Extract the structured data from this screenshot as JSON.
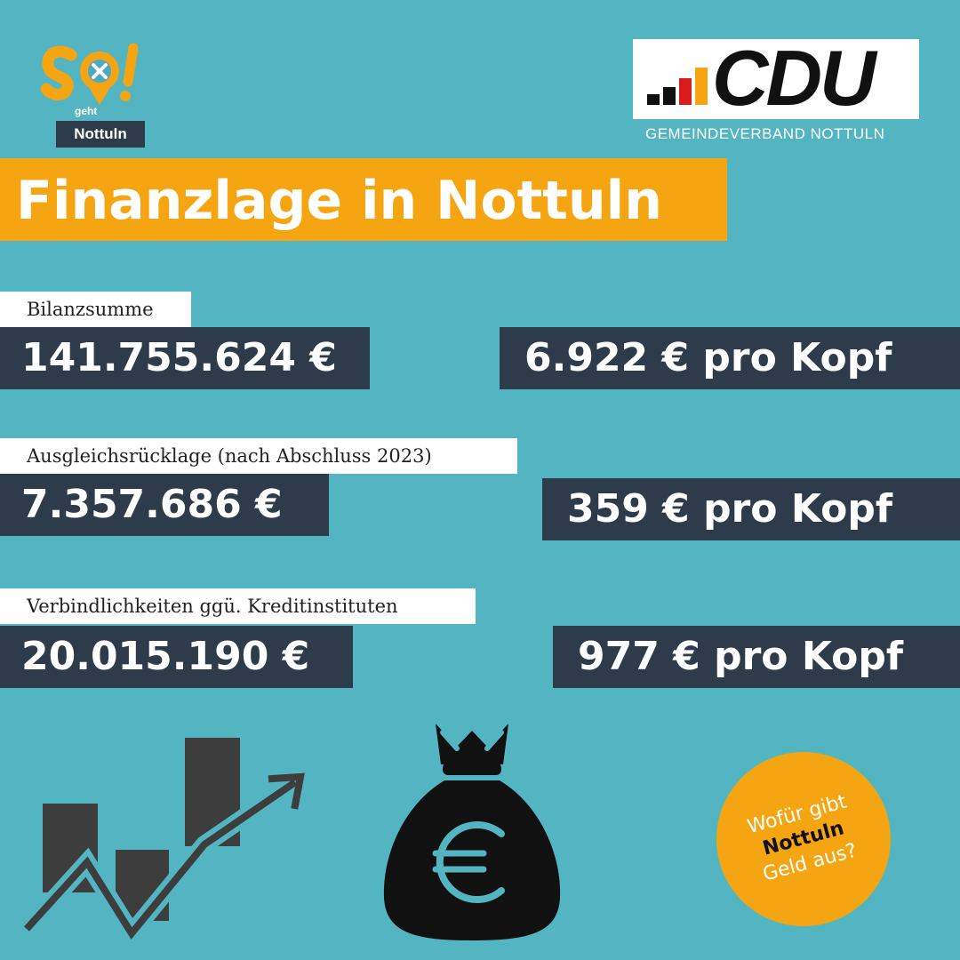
{
  "logo": {
    "geht": "geht",
    "nottuln": "Nottuln",
    "so": "SO!"
  },
  "cdu": {
    "name": "CDU",
    "subtitle": "GEMEINDEVERBAND NOTTULN",
    "bar_colors": [
      "#111111",
      "#d91b1b",
      "#f5a512"
    ]
  },
  "title": "Finanzlage in Nottuln",
  "rows": [
    {
      "label": "Bilanzsumme",
      "value": "141.755.624 €",
      "per_capita": "6.922 €  pro Kopf"
    },
    {
      "label": "Ausgleichsrücklage (nach Abschluss 2023)",
      "value": "7.357.686 €",
      "per_capita": "359 €  pro Kopf"
    },
    {
      "label": "Verbindlichkeiten ggü. Kreditinstituten",
      "value": "20.015.190 €",
      "per_capita": "977 €  pro Kopf"
    }
  ],
  "badge": {
    "line1": "Wofür gibt",
    "line2": "Nottuln",
    "line3": "Geld aus?"
  },
  "icons": {
    "chart": "rising-chart-icon",
    "money_bag": "euro-money-bag-icon"
  },
  "colors": {
    "background": "#52b5c1",
    "accent": "#f5a512",
    "dark": "#2e3b4b"
  }
}
